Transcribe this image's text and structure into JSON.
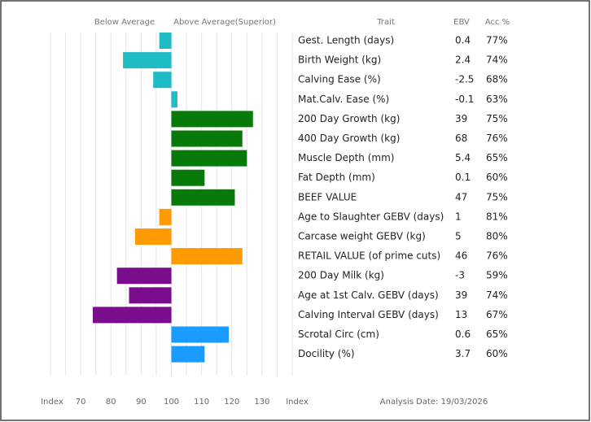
{
  "chart_data": {
    "type": "barh",
    "header_below": "Below Average",
    "header_above": "Above Average(Superior)",
    "col_trait": "Trait",
    "col_ebv": "EBV",
    "col_acc": "Acc %",
    "categories": [
      "Gest. Length (days)",
      "Birth Weight (kg)",
      "Calving Ease (%)",
      "Mat.Calv. Ease (%)",
      "200 Day Growth (kg)",
      "400 Day Growth (kg)",
      "Muscle Depth (mm)",
      "Fat Depth (mm)",
      "BEEF VALUE",
      "Age to Slaughter GEBV (days)",
      "Carcase weight GEBV (kg)",
      "RETAIL VALUE (of prime cuts)",
      "200 Day Milk (kg)",
      "Age at 1st Calv. GEBV (days)",
      "Calving Interval GEBV (days)",
      "Scrotal Circ (cm)",
      "Docility (%)"
    ],
    "values": [
      96,
      84,
      94,
      102,
      127,
      123.5,
      125,
      111,
      121,
      96,
      88,
      123.5,
      82,
      86,
      74,
      119,
      111
    ],
    "colors": [
      "#1fbcc6",
      "#1fbcc6",
      "#1fbcc6",
      "#1fbcc6",
      "#087a0a",
      "#087a0a",
      "#087a0a",
      "#087a0a",
      "#087a0a",
      "#ff9a00",
      "#ff9a00",
      "#ff9a00",
      "#790d8c",
      "#790d8c",
      "#790d8c",
      "#1a9bff",
      "#1a9bff"
    ],
    "ebv": [
      0.4,
      2.4,
      -2.5,
      -0.1,
      39,
      68,
      5.4,
      0.1,
      47,
      1,
      5,
      46,
      -3,
      39,
      13,
      0.6,
      3.7
    ],
    "acc": [
      "77%",
      "74%",
      "68%",
      "63%",
      "75%",
      "76%",
      "65%",
      "60%",
      "75%",
      "81%",
      "80%",
      "76%",
      "59%",
      "74%",
      "67%",
      "65%",
      "60%"
    ],
    "base": 100,
    "xlim": [
      60,
      140
    ],
    "xticks": [
      70,
      80,
      90,
      100,
      110,
      120,
      130
    ],
    "xgrid": [
      60,
      65,
      70,
      75,
      80,
      85,
      90,
      95,
      100,
      105,
      110,
      115,
      120,
      125,
      130,
      135,
      140
    ],
    "x_label_left": "Index",
    "x_label_right": "Index",
    "analysis_date": "Analysis Date: 19/03/2026"
  }
}
